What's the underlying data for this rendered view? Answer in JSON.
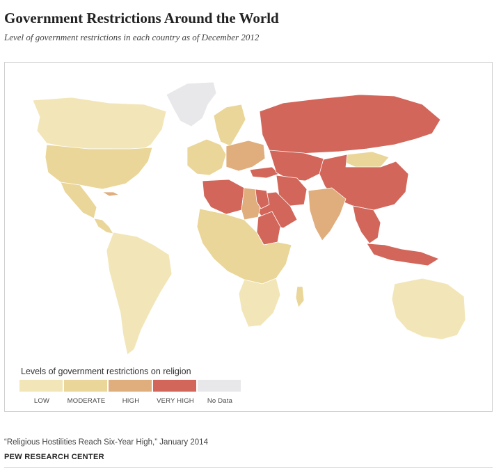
{
  "header": {
    "title": "Government Restrictions Around the World",
    "subtitle": "Level of government restrictions in each country as of December 2012"
  },
  "legend": {
    "title": "Levels of government restrictions on religion",
    "items": [
      {
        "label": "LOW",
        "color": "#f2e6b8"
      },
      {
        "label": "MODERATE",
        "color": "#ead698"
      },
      {
        "label": "HIGH",
        "color": "#e0ad7c"
      },
      {
        "label": "VERY HIGH",
        "color": "#d2665a"
      },
      {
        "label": "No Data",
        "color": "#e8e8ea"
      }
    ]
  },
  "map": {
    "regions": [
      {
        "name": "Greenland",
        "level": "No Data"
      },
      {
        "name": "Canada",
        "level": "LOW"
      },
      {
        "name": "United States",
        "level": "MODERATE"
      },
      {
        "name": "Mexico",
        "level": "MODERATE"
      },
      {
        "name": "Cuba",
        "level": "HIGH"
      },
      {
        "name": "Central America",
        "level": "MODERATE"
      },
      {
        "name": "South America",
        "level": "LOW"
      },
      {
        "name": "Russia",
        "level": "VERY HIGH"
      },
      {
        "name": "China",
        "level": "VERY HIGH"
      },
      {
        "name": "Mongolia",
        "level": "MODERATE"
      },
      {
        "name": "Scandinavia",
        "level": "MODERATE"
      },
      {
        "name": "Western Europe",
        "level": "MODERATE"
      },
      {
        "name": "Eastern Europe",
        "level": "HIGH"
      },
      {
        "name": "Turkey",
        "level": "VERY HIGH"
      },
      {
        "name": "Algeria",
        "level": "VERY HIGH"
      },
      {
        "name": "Egypt",
        "level": "VERY HIGH"
      },
      {
        "name": "Libya",
        "level": "HIGH"
      },
      {
        "name": "Sudan",
        "level": "VERY HIGH"
      },
      {
        "name": "Saudi Arabia",
        "level": "VERY HIGH"
      },
      {
        "name": "Iran",
        "level": "VERY HIGH"
      },
      {
        "name": "Central Asia",
        "level": "VERY HIGH"
      },
      {
        "name": "India",
        "level": "HIGH"
      },
      {
        "name": "Southeast Asia",
        "level": "VERY HIGH"
      },
      {
        "name": "Indonesia",
        "level": "VERY HIGH"
      },
      {
        "name": "Australia",
        "level": "LOW"
      },
      {
        "name": "Sub-Saharan Africa",
        "level": "MODERATE"
      },
      {
        "name": "Southern Africa",
        "level": "LOW"
      },
      {
        "name": "Madagascar",
        "level": "MODERATE"
      }
    ]
  },
  "footer": {
    "source": "“Religious Hostilities Reach Six-Year High,” January 2014",
    "brand": "PEW RESEARCH CENTER"
  }
}
